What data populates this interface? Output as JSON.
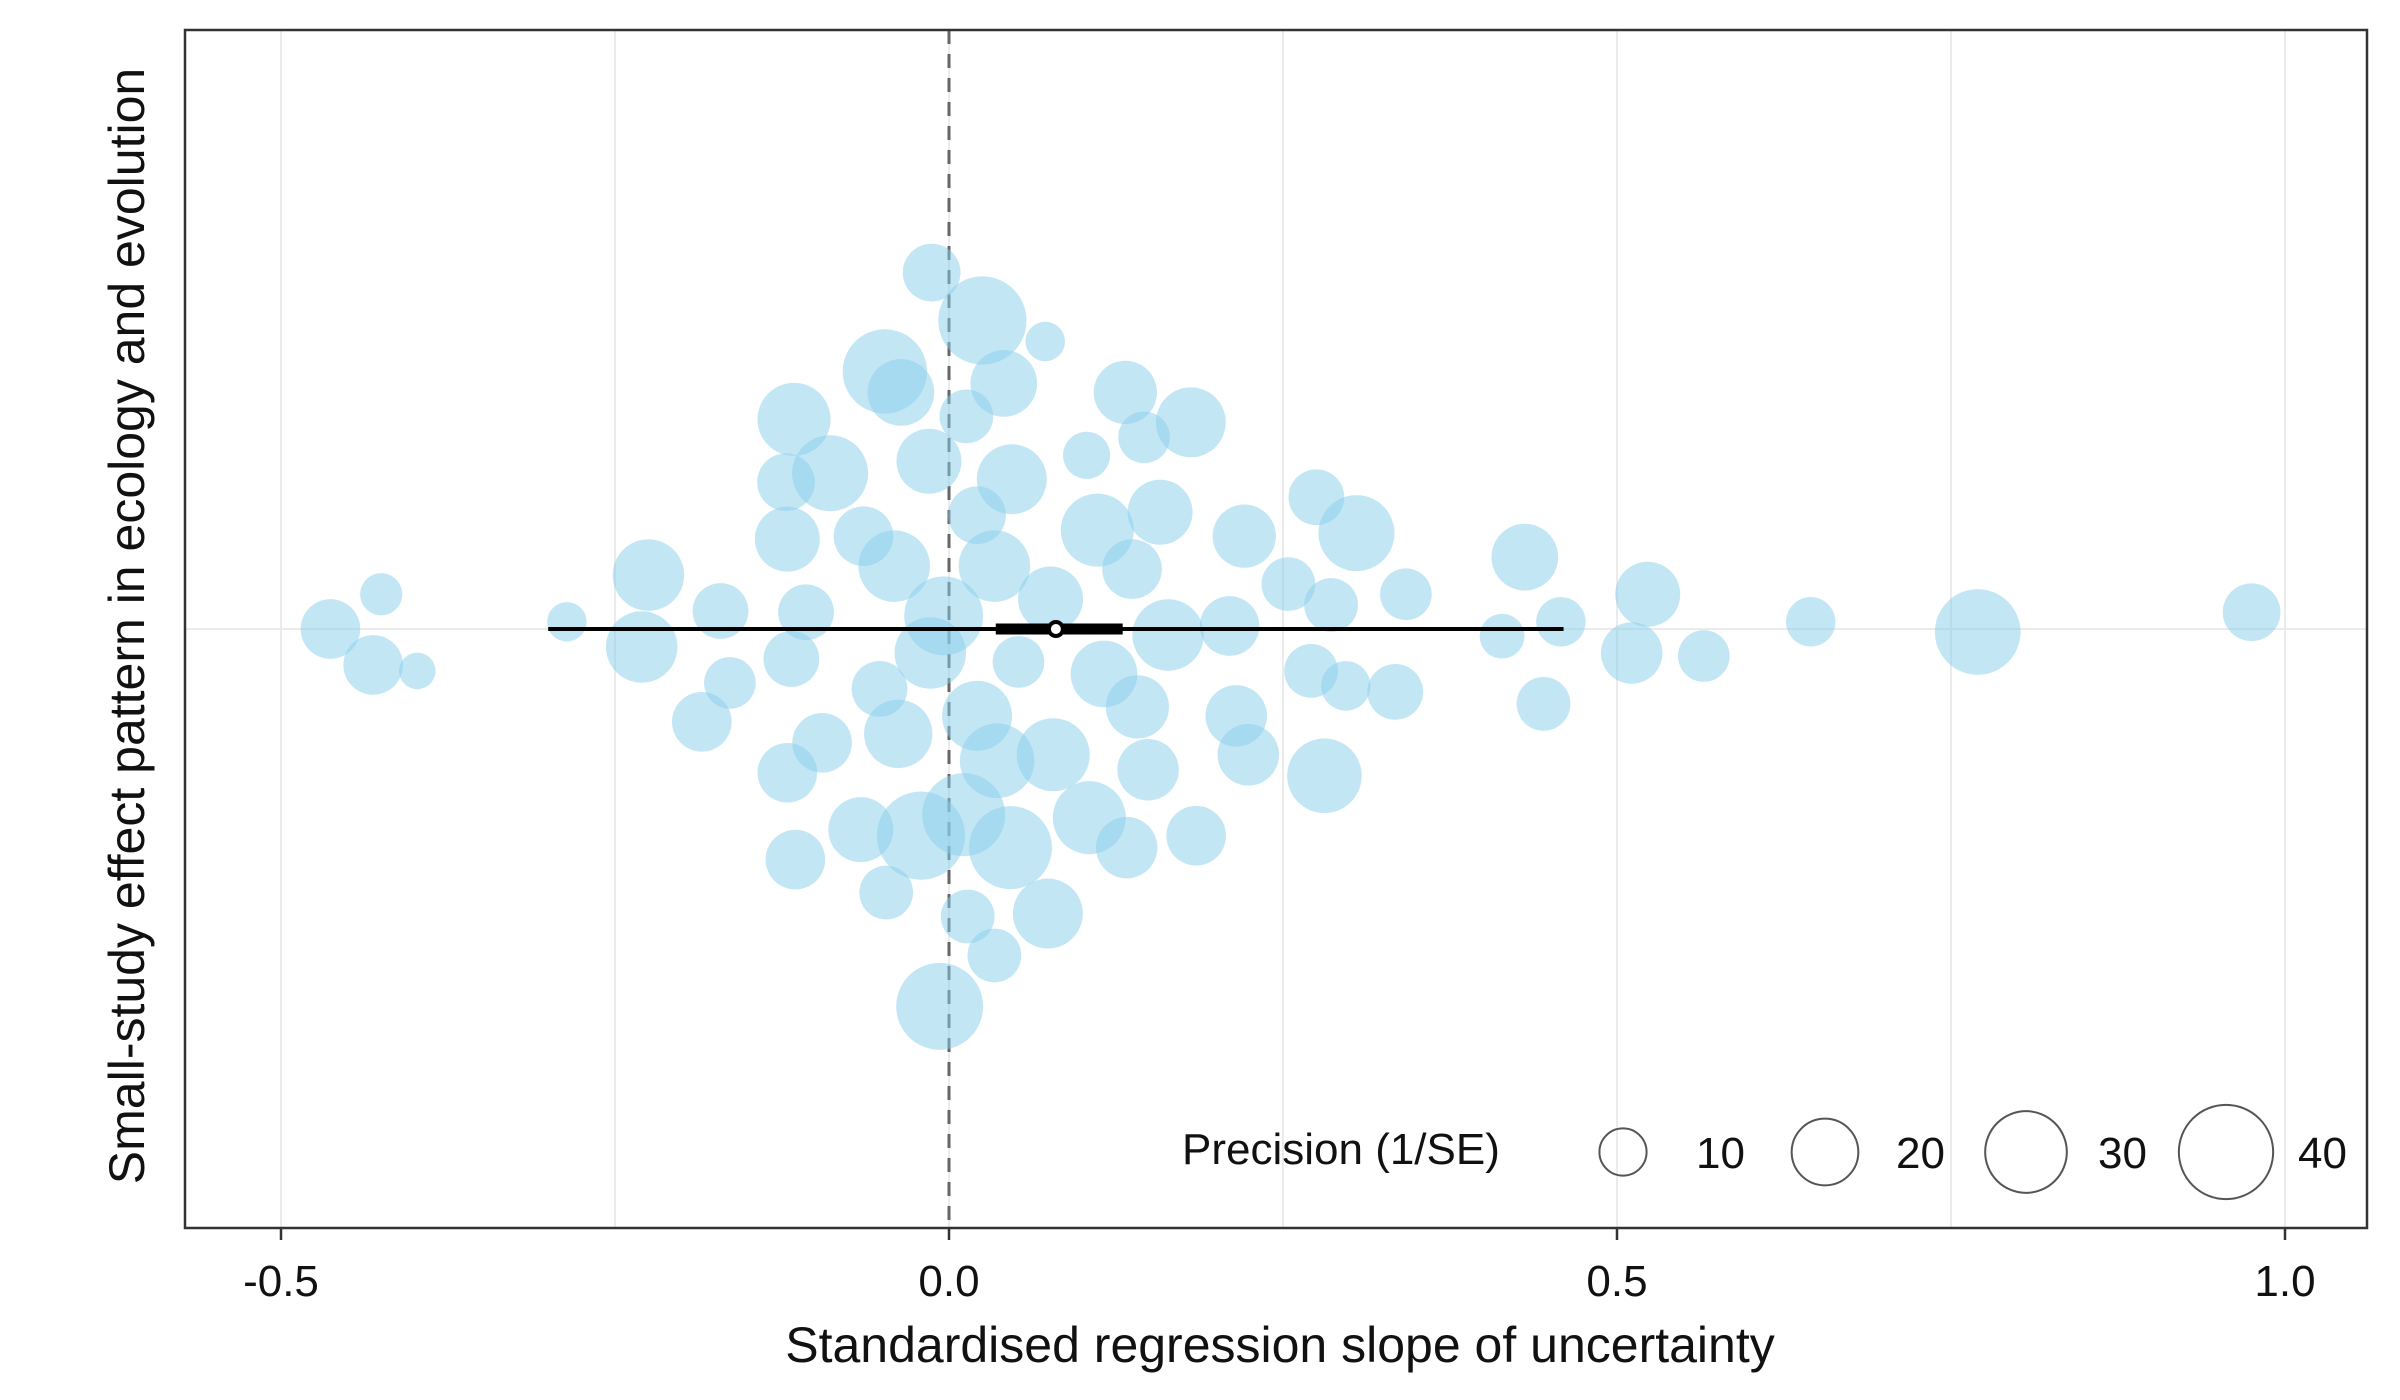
{
  "chart_data": {
    "type": "scatter",
    "title": "",
    "xlabel": "Standardised regression slope of uncertainty",
    "ylabel": "Small-study effect pattern in ecology and evolution",
    "xlim": [
      -0.56,
      1.06
    ],
    "ylim": [
      -1.0,
      1.0
    ],
    "x_ticks": [
      -0.5,
      0.0,
      0.5,
      1.0
    ],
    "x_tick_labels": [
      "-0.5",
      "0.0",
      "0.5",
      "1.0"
    ],
    "grid": true,
    "reference_line_x": 0.0,
    "point_color": "#87CEEB",
    "estimate": {
      "x": 0.08,
      "ci_inner": [
        0.035,
        0.13
      ],
      "ci_outer": [
        -0.3,
        0.46
      ]
    },
    "legend": {
      "title": "Precision (1/SE)",
      "position": "bottom-right",
      "sizes": [
        10,
        20,
        30,
        40
      ],
      "labels": [
        "10",
        "20",
        "30",
        "40"
      ]
    },
    "points": [
      {
        "x": -0.013,
        "y": 0.595,
        "precision": 15
      },
      {
        "x": 0.025,
        "y": 0.515,
        "precision": 35
      },
      {
        "x": 0.072,
        "y": 0.48,
        "precision": 7
      },
      {
        "x": -0.048,
        "y": 0.43,
        "precision": 32
      },
      {
        "x": -0.036,
        "y": 0.395,
        "precision": 20
      },
      {
        "x": 0.041,
        "y": 0.41,
        "precision": 20
      },
      {
        "x": 0.132,
        "y": 0.395,
        "precision": 18
      },
      {
        "x": -0.116,
        "y": 0.35,
        "precision": 24
      },
      {
        "x": 0.013,
        "y": 0.355,
        "precision": 13
      },
      {
        "x": 0.181,
        "y": 0.345,
        "precision": 22
      },
      {
        "x": 0.146,
        "y": 0.32,
        "precision": 12
      },
      {
        "x": 0.103,
        "y": 0.29,
        "precision": 10
      },
      {
        "x": -0.089,
        "y": 0.26,
        "precision": 26
      },
      {
        "x": -0.015,
        "y": 0.28,
        "precision": 19
      },
      {
        "x": -0.122,
        "y": 0.245,
        "precision": 15
      },
      {
        "x": 0.047,
        "y": 0.25,
        "precision": 22
      },
      {
        "x": 0.275,
        "y": 0.22,
        "precision": 14
      },
      {
        "x": 0.021,
        "y": 0.19,
        "precision": 15
      },
      {
        "x": 0.158,
        "y": 0.195,
        "precision": 19
      },
      {
        "x": 0.111,
        "y": 0.165,
        "precision": 24
      },
      {
        "x": 0.305,
        "y": 0.16,
        "precision": 26
      },
      {
        "x": -0.121,
        "y": 0.15,
        "precision": 19
      },
      {
        "x": -0.064,
        "y": 0.155,
        "precision": 16
      },
      {
        "x": 0.221,
        "y": 0.155,
        "precision": 18
      },
      {
        "x": 0.034,
        "y": 0.105,
        "precision": 23
      },
      {
        "x": -0.041,
        "y": 0.105,
        "precision": 23
      },
      {
        "x": 0.137,
        "y": 0.1,
        "precision": 16
      },
      {
        "x": 0.431,
        "y": 0.12,
        "precision": 20
      },
      {
        "x": 0.254,
        "y": 0.075,
        "precision": 13
      },
      {
        "x": -0.225,
        "y": 0.09,
        "precision": 23
      },
      {
        "x": 0.076,
        "y": 0.05,
        "precision": 19
      },
      {
        "x": 0.286,
        "y": 0.04,
        "precision": 13
      },
      {
        "x": 0.342,
        "y": 0.058,
        "precision": 12
      },
      {
        "x": 0.523,
        "y": 0.058,
        "precision": 19
      },
      {
        "x": -0.425,
        "y": 0.058,
        "precision": 8
      },
      {
        "x": -0.171,
        "y": 0.03,
        "precision": 14
      },
      {
        "x": -0.107,
        "y": 0.028,
        "precision": 14
      },
      {
        "x": -0.004,
        "y": 0.022,
        "precision": 28
      },
      {
        "x": 0.975,
        "y": 0.028,
        "precision": 15
      },
      {
        "x": -0.286,
        "y": 0.012,
        "precision": 7
      },
      {
        "x": 0.458,
        "y": 0.012,
        "precision": 11
      },
      {
        "x": 0.645,
        "y": 0.012,
        "precision": 11
      },
      {
        "x": -0.463,
        "y": 0.0,
        "precision": 16
      },
      {
        "x": 0.21,
        "y": 0.005,
        "precision": 16
      },
      {
        "x": 0.164,
        "y": -0.01,
        "precision": 23
      },
      {
        "x": 0.77,
        "y": -0.005,
        "precision": 33
      },
      {
        "x": -0.23,
        "y": -0.03,
        "precision": 23
      },
      {
        "x": -0.014,
        "y": -0.04,
        "precision": 23
      },
      {
        "x": 0.414,
        "y": -0.012,
        "precision": 9
      },
      {
        "x": -0.431,
        "y": -0.06,
        "precision": 16
      },
      {
        "x": -0.398,
        "y": -0.07,
        "precision": 6
      },
      {
        "x": -0.118,
        "y": -0.05,
        "precision": 14
      },
      {
        "x": 0.052,
        "y": -0.055,
        "precision": 12
      },
      {
        "x": 0.116,
        "y": -0.075,
        "precision": 20
      },
      {
        "x": 0.511,
        "y": -0.04,
        "precision": 17
      },
      {
        "x": 0.565,
        "y": -0.045,
        "precision": 12
      },
      {
        "x": -0.164,
        "y": -0.09,
        "precision": 12
      },
      {
        "x": -0.052,
        "y": -0.1,
        "precision": 14
      },
      {
        "x": 0.271,
        "y": -0.07,
        "precision": 13
      },
      {
        "x": 0.297,
        "y": -0.095,
        "precision": 11
      },
      {
        "x": 0.334,
        "y": -0.105,
        "precision": 14
      },
      {
        "x": 0.141,
        "y": -0.13,
        "precision": 18
      },
      {
        "x": 0.021,
        "y": -0.145,
        "precision": 22
      },
      {
        "x": 0.215,
        "y": -0.145,
        "precision": 17
      },
      {
        "x": 0.445,
        "y": -0.125,
        "precision": 13
      },
      {
        "x": -0.185,
        "y": -0.155,
        "precision": 16
      },
      {
        "x": -0.038,
        "y": -0.175,
        "precision": 21
      },
      {
        "x": -0.095,
        "y": -0.19,
        "precision": 16
      },
      {
        "x": 0.078,
        "y": -0.21,
        "precision": 24
      },
      {
        "x": 0.036,
        "y": -0.22,
        "precision": 25
      },
      {
        "x": 0.224,
        "y": -0.21,
        "precision": 17
      },
      {
        "x": 0.149,
        "y": -0.235,
        "precision": 17
      },
      {
        "x": -0.121,
        "y": -0.24,
        "precision": 16
      },
      {
        "x": 0.281,
        "y": -0.245,
        "precision": 25
      },
      {
        "x": 0.011,
        "y": -0.31,
        "precision": 31
      },
      {
        "x": 0.105,
        "y": -0.315,
        "precision": 24
      },
      {
        "x": -0.066,
        "y": -0.335,
        "precision": 19
      },
      {
        "x": -0.021,
        "y": -0.345,
        "precision": 35
      },
      {
        "x": 0.046,
        "y": -0.365,
        "precision": 31
      },
      {
        "x": 0.133,
        "y": -0.365,
        "precision": 17
      },
      {
        "x": 0.185,
        "y": -0.345,
        "precision": 16
      },
      {
        "x": -0.115,
        "y": -0.385,
        "precision": 16
      },
      {
        "x": -0.047,
        "y": -0.44,
        "precision": 13
      },
      {
        "x": 0.074,
        "y": -0.475,
        "precision": 22
      },
      {
        "x": 0.014,
        "y": -0.48,
        "precision": 13
      },
      {
        "x": 0.034,
        "y": -0.545,
        "precision": 13
      },
      {
        "x": -0.007,
        "y": -0.63,
        "precision": 34
      }
    ]
  }
}
